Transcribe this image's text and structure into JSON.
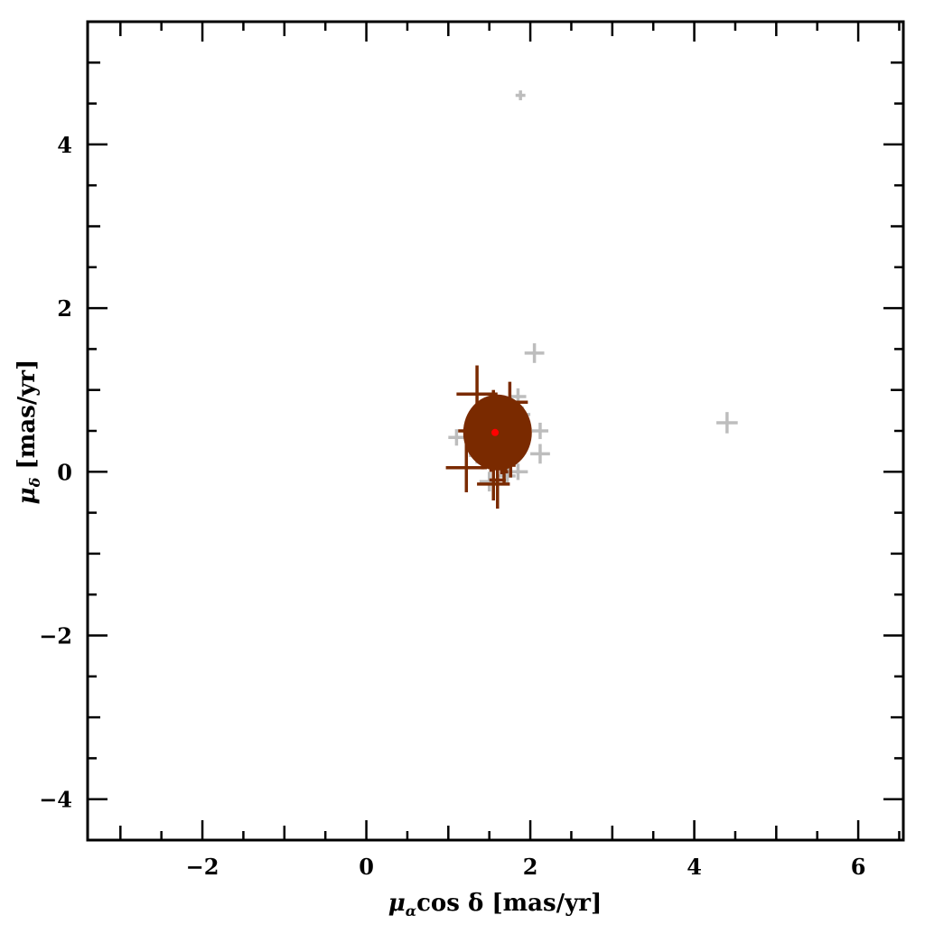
{
  "chart_data": {
    "type": "scatter",
    "title": "",
    "xlabel": "μαcos δ [mas/yr]",
    "xlabel_parts": {
      "sym": "μ",
      "sub": "α",
      "rest": "cos δ [mas/yr]"
    },
    "ylabel": "μδ [mas/yr]",
    "ylabel_parts": {
      "sym": "μ",
      "sub": "δ",
      "rest": " [mas/yr]"
    },
    "xlim": [
      -3.4,
      6.55
    ],
    "ylim": [
      -4.5,
      5.5
    ],
    "xticks": [
      -2,
      0,
      2,
      4,
      6
    ],
    "yticks": [
      -4,
      -2,
      0,
      2,
      4
    ],
    "xtick_labels": [
      "−2",
      "0",
      "2",
      "4",
      "6"
    ],
    "ytick_labels": [
      "−4",
      "−2",
      "0",
      "2",
      "4"
    ],
    "minor_tick_step": 0.5,
    "grid": false,
    "colors": {
      "members": "#7a2a00",
      "field": "#bdbdbd",
      "mean": "#ff0000",
      "frame": "#000000"
    },
    "series": [
      {
        "marker": "error-cross",
        "color": "#bdbdbd",
        "points": [
          [
            1.88,
            4.6,
            0.06,
            0.06
          ],
          [
            2.05,
            1.45,
            0.12,
            0.12
          ],
          [
            4.4,
            0.6,
            0.13,
            0.13
          ],
          [
            2.12,
            0.5,
            0.1,
            0.1
          ],
          [
            2.12,
            0.22,
            0.12,
            0.12
          ],
          [
            1.1,
            0.42,
            0.1,
            0.1
          ],
          [
            1.85,
            0.0,
            0.12,
            0.1
          ],
          [
            1.5,
            -0.12,
            0.12,
            0.12
          ],
          [
            1.85,
            0.92,
            0.1,
            0.1
          ],
          [
            1.9,
            0.7,
            0.1,
            0.1
          ],
          [
            1.72,
            -0.05,
            0.1,
            0.1
          ],
          [
            1.35,
            0.2,
            0.1,
            0.1
          ]
        ]
      },
      {
        "marker": "error-cross",
        "color": "#7a2a00",
        "points": [
          [
            1.35,
            0.95,
            0.25,
            0.35
          ],
          [
            1.55,
            0.78,
            0.2,
            0.22
          ],
          [
            1.75,
            0.85,
            0.22,
            0.25
          ],
          [
            1.22,
            0.05,
            0.25,
            0.3
          ],
          [
            1.55,
            -0.15,
            0.2,
            0.2
          ],
          [
            1.6,
            -0.1,
            0.1,
            0.35
          ],
          [
            1.4,
            0.6,
            0.15,
            0.12
          ],
          [
            1.3,
            0.5,
            0.18,
            0.2
          ],
          [
            1.85,
            0.55,
            0.1,
            0.15
          ],
          [
            1.9,
            0.4,
            0.1,
            0.15
          ],
          [
            1.65,
            0.15,
            0.15,
            0.18
          ],
          [
            1.45,
            0.25,
            0.12,
            0.2
          ],
          [
            1.7,
            0.3,
            0.12,
            0.15
          ],
          [
            1.55,
            0.5,
            0.14,
            0.14
          ],
          [
            1.6,
            0.6,
            0.12,
            0.12
          ],
          [
            1.5,
            0.4,
            0.12,
            0.12
          ],
          [
            1.65,
            0.45,
            0.12,
            0.12
          ],
          [
            1.58,
            0.55,
            0.1,
            0.1
          ],
          [
            1.62,
            0.35,
            0.1,
            0.12
          ],
          [
            1.48,
            0.62,
            0.1,
            0.1
          ],
          [
            1.72,
            0.62,
            0.1,
            0.12
          ],
          [
            1.42,
            0.45,
            0.1,
            0.1
          ],
          [
            1.78,
            0.45,
            0.1,
            0.12
          ],
          [
            1.52,
            0.7,
            0.1,
            0.12
          ],
          [
            1.68,
            0.72,
            0.1,
            0.1
          ],
          [
            1.45,
            0.32,
            0.1,
            0.1
          ],
          [
            1.75,
            0.28,
            0.1,
            0.12
          ],
          [
            1.38,
            0.7,
            0.12,
            0.1
          ],
          [
            1.82,
            0.7,
            0.1,
            0.1
          ],
          [
            1.6,
            0.25,
            0.08,
            0.1
          ],
          [
            1.52,
            0.18,
            0.08,
            0.18
          ],
          [
            1.7,
            0.18,
            0.08,
            0.2
          ],
          [
            1.58,
            0.8,
            0.08,
            0.1
          ],
          [
            1.35,
            0.38,
            0.12,
            0.1
          ],
          [
            1.88,
            0.32,
            0.1,
            0.1
          ],
          [
            1.62,
            0.5,
            0.15,
            0.15
          ],
          [
            1.5,
            0.52,
            0.15,
            0.15
          ],
          [
            1.7,
            0.52,
            0.15,
            0.15
          ],
          [
            1.56,
            0.42,
            0.15,
            0.13
          ],
          [
            1.64,
            0.62,
            0.13,
            0.13
          ],
          [
            1.46,
            0.78,
            0.1,
            0.08
          ],
          [
            1.8,
            0.2,
            0.08,
            0.1
          ],
          [
            1.42,
            0.15,
            0.08,
            0.12
          ],
          [
            1.76,
            0.08,
            0.06,
            0.15
          ],
          [
            1.68,
            0.0,
            0.05,
            0.15
          ]
        ]
      }
    ],
    "mean_point": [
      1.57,
      0.48
    ]
  }
}
